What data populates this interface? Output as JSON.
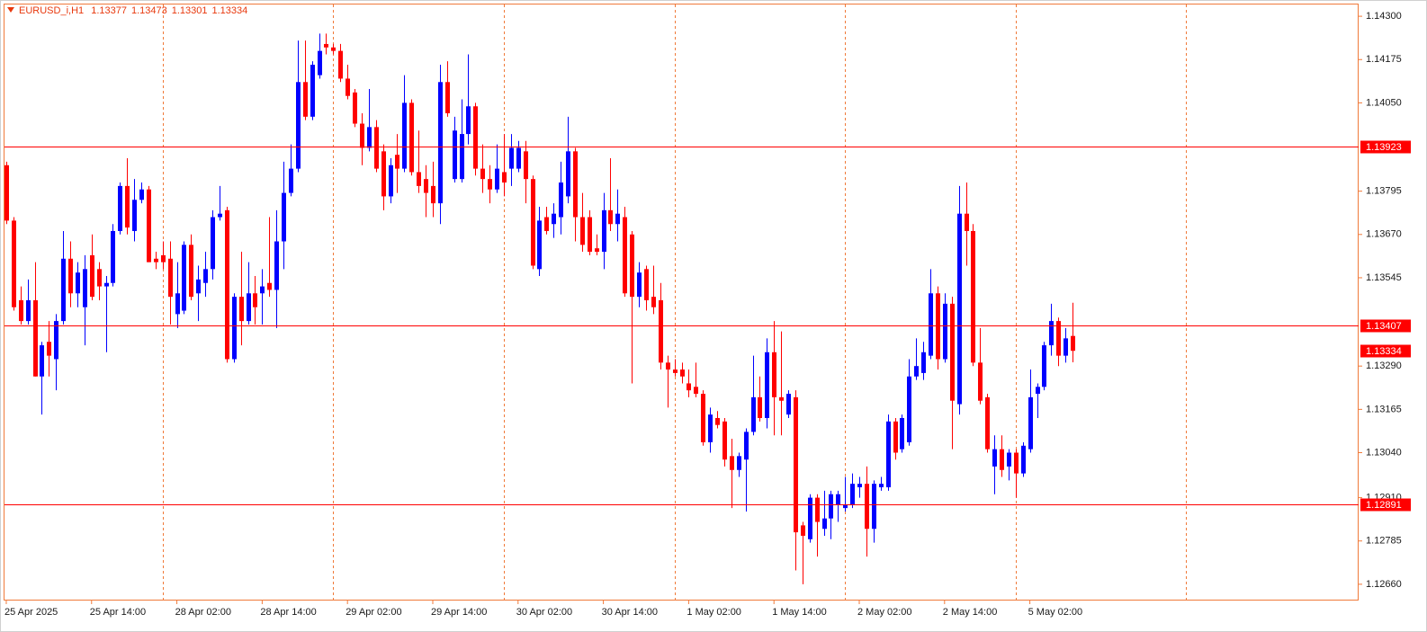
{
  "chart_data": {
    "type": "candlestick",
    "title": "EURUSD_i,H1",
    "open": [
      1.1387,
      1.1371,
      1.1348,
      1.1342,
      1.1348,
      1.1326,
      1.1336,
      1.1331,
      1.1342,
      1.136,
      1.135,
      1.1346,
      1.1361,
      1.1357,
      1.1352,
      1.1353,
      1.1368,
      1.1381,
      1.1368,
      1.1377,
      1.138,
      1.136,
      1.1361,
      1.136,
      1.1344,
      1.1345,
      1.1364,
      1.135,
      1.1353,
      1.1357,
      1.1372,
      1.1374,
      1.1331,
      1.1349,
      1.1342,
      1.135,
      1.135,
      1.1353,
      1.1351,
      1.1365,
      1.1379,
      1.1386,
      1.1411,
      1.1401,
      1.1413,
      1.1422,
      1.1421,
      1.142,
      1.1412,
      1.1408,
      1.1399,
      1.1392,
      1.1398,
      1.1391,
      1.1378,
      1.139,
      1.1386,
      1.1405,
      1.1385,
      1.1383,
      1.1381,
      1.1376,
      1.1411,
      1.1383,
      1.1383,
      1.1396,
      1.1404,
      1.1386,
      1.1383,
      1.138,
      1.1385,
      1.1386,
      1.1386,
      1.1391,
      1.1383,
      1.1357,
      1.1372,
      1.137,
      1.1372,
      1.1378,
      1.1391,
      1.1372,
      1.1372,
      1.1363,
      1.1362,
      1.1374,
      1.137,
      1.1372,
      1.1367,
      1.1349,
      1.1357,
      1.1349,
      1.1348,
      1.133,
      1.1328,
      1.1328,
      1.1324,
      1.1323,
      1.1321,
      1.1307,
      1.1314,
      1.1313,
      1.1303,
      1.1299,
      1.1302,
      1.131,
      1.132,
      1.1314,
      1.1333,
      1.132,
      1.1315,
      1.132,
      1.1283,
      1.1279,
      1.1291,
      1.1282,
      1.1285,
      1.1289,
      1.1288,
      1.1289,
      1.1294,
      1.1295,
      1.1282,
      1.1294,
      1.1294,
      1.1313,
      1.1305,
      1.1307,
      1.1326,
      1.1327,
      1.1332,
      1.135,
      1.1331,
      1.1347,
      1.1318,
      1.1373,
      1.1368,
      1.133,
      1.132,
      1.13,
      1.1305,
      1.13,
      1.1304,
      1.1298,
      1.1305,
      1.1321,
      1.1323,
      1.1335,
      1.1342,
      1.1332,
      1.13377
    ],
    "high": [
      1.1388,
      1.1372,
      1.1352,
      1.1354,
      1.1359,
      1.1336,
      1.1342,
      1.1344,
      1.1368,
      1.1365,
      1.1359,
      1.1361,
      1.1367,
      1.1359,
      1.1355,
      1.137,
      1.1382,
      1.1389,
      1.1383,
      1.1382,
      1.1381,
      1.1362,
      1.1365,
      1.1365,
      1.1359,
      1.1365,
      1.1367,
      1.1358,
      1.1362,
      1.1374,
      1.1381,
      1.1375,
      1.135,
      1.1362,
      1.1359,
      1.1355,
      1.1357,
      1.1372,
      1.1374,
      1.1388,
      1.1393,
      1.1423,
      1.1423,
      1.1417,
      1.1425,
      1.1425,
      1.1422,
      1.1422,
      1.1416,
      1.1409,
      1.1402,
      1.1409,
      1.14,
      1.1393,
      1.1389,
      1.1396,
      1.1413,
      1.1406,
      1.1397,
      1.1387,
      1.1388,
      1.1416,
      1.1417,
      1.1401,
      1.1406,
      1.1419,
      1.1405,
      1.1393,
      1.1387,
      1.1393,
      1.1396,
      1.1396,
      1.1394,
      1.1394,
      1.1384,
      1.1375,
      1.1375,
      1.1376,
      1.1388,
      1.1401,
      1.1392,
      1.1379,
      1.1374,
      1.1367,
      1.1379,
      1.1389,
      1.138,
      1.1375,
      1.1368,
      1.1359,
      1.1358,
      1.1358,
      1.1353,
      1.1332,
      1.1331,
      1.133,
      1.1328,
      1.133,
      1.1322,
      1.1317,
      1.1316,
      1.1314,
      1.1308,
      1.1304,
      1.1311,
      1.1332,
      1.1326,
      1.1337,
      1.1342,
      1.1339,
      1.1322,
      1.1322,
      1.1284,
      1.1292,
      1.1292,
      1.1293,
      1.1293,
      1.1293,
      1.1297,
      1.1298,
      1.1297,
      1.13,
      1.1296,
      1.1297,
      1.1315,
      1.1314,
      1.1315,
      1.1331,
      1.1337,
      1.1336,
      1.1357,
      1.1352,
      1.135,
      1.1349,
      1.1381,
      1.1382,
      1.137,
      1.134,
      1.1321,
      1.1309,
      1.1309,
      1.1305,
      1.1305,
      1.1307,
      1.1328,
      1.1324,
      1.1336,
      1.1347,
      1.1343,
      1.134,
      1.13473
    ],
    "low": [
      1.137,
      1.1345,
      1.1341,
      1.1341,
      1.1326,
      1.1315,
      1.1326,
      1.1322,
      1.1341,
      1.1346,
      1.1346,
      1.1335,
      1.1348,
      1.1348,
      1.1333,
      1.1352,
      1.1367,
      1.1367,
      1.1365,
      1.1376,
      1.1359,
      1.1357,
      1.1357,
      1.1341,
      1.134,
      1.1344,
      1.1348,
      1.1342,
      1.1349,
      1.1354,
      1.1371,
      1.133,
      1.133,
      1.1335,
      1.1341,
      1.1341,
      1.1341,
      1.1349,
      1.134,
      1.1357,
      1.1378,
      1.1385,
      1.14,
      1.14,
      1.1412,
      1.1419,
      1.1419,
      1.1411,
      1.1406,
      1.1398,
      1.1387,
      1.1391,
      1.1385,
      1.1374,
      1.1376,
      1.1379,
      1.1385,
      1.1384,
      1.1379,
      1.1372,
      1.1372,
      1.137,
      1.1401,
      1.1382,
      1.1382,
      1.1393,
      1.1384,
      1.1379,
      1.1376,
      1.1379,
      1.1378,
      1.1381,
      1.1385,
      1.1376,
      1.1357,
      1.1355,
      1.1367,
      1.1366,
      1.1367,
      1.1376,
      1.1365,
      1.1362,
      1.1361,
      1.1361,
      1.1357,
      1.1368,
      1.1365,
      1.1349,
      1.1324,
      1.1346,
      1.1345,
      1.1344,
      1.1328,
      1.1317,
      1.1326,
      1.1324,
      1.132,
      1.132,
      1.1306,
      1.1304,
      1.1311,
      1.13,
      1.1288,
      1.1297,
      1.1287,
      1.1309,
      1.1313,
      1.1311,
      1.1309,
      1.1309,
      1.1314,
      1.127,
      1.1266,
      1.1278,
      1.1274,
      1.128,
      1.1279,
      1.1284,
      1.1287,
      1.1288,
      1.1291,
      1.1274,
      1.1278,
      1.1293,
      1.1293,
      1.1302,
      1.1304,
      1.1306,
      1.1325,
      1.1325,
      1.1331,
      1.1328,
      1.133,
      1.1305,
      1.1315,
      1.1358,
      1.1329,
      1.1318,
      1.1304,
      1.1292,
      1.1297,
      1.1296,
      1.1291,
      1.1297,
      1.1304,
      1.1314,
      1.1322,
      1.1332,
      1.1329,
      1.133,
      1.13301
    ],
    "close": [
      1.1371,
      1.1346,
      1.1342,
      1.1348,
      1.1326,
      1.1335,
      1.1332,
      1.1342,
      1.136,
      1.135,
      1.1356,
      1.1357,
      1.1349,
      1.1352,
      1.1353,
      1.1368,
      1.1381,
      1.1369,
      1.1377,
      1.138,
      1.1359,
      1.1359,
      1.1359,
      1.1349,
      1.135,
      1.1364,
      1.1349,
      1.1354,
      1.1357,
      1.1372,
      1.1373,
      1.1331,
      1.1349,
      1.1342,
      1.135,
      1.1346,
      1.1352,
      1.1351,
      1.1365,
      1.1379,
      1.1386,
      1.1411,
      1.1401,
      1.1416,
      1.142,
      1.1421,
      1.142,
      1.1412,
      1.1407,
      1.1399,
      1.1392,
      1.1398,
      1.1386,
      1.1378,
      1.1387,
      1.1386,
      1.1405,
      1.1385,
      1.1381,
      1.1379,
      1.1376,
      1.1411,
      1.1402,
      1.1397,
      1.1396,
      1.1404,
      1.1386,
      1.1383,
      1.138,
      1.1386,
      1.1382,
      1.1392,
      1.1392,
      1.1383,
      1.1358,
      1.1371,
      1.1368,
      1.1373,
      1.1382,
      1.1391,
      1.1372,
      1.1364,
      1.1362,
      1.1362,
      1.1374,
      1.137,
      1.1373,
      1.135,
      1.1349,
      1.1356,
      1.1348,
      1.1346,
      1.133,
      1.1328,
      1.1327,
      1.1326,
      1.1322,
      1.1321,
      1.1307,
      1.1315,
      1.1312,
      1.1302,
      1.1299,
      1.1303,
      1.131,
      1.132,
      1.1314,
      1.1333,
      1.132,
      1.1319,
      1.1321,
      1.1281,
      1.128,
      1.1291,
      1.1284,
      1.1285,
      1.1292,
      1.1292,
      1.1289,
      1.1295,
      1.1295,
      1.1282,
      1.1295,
      1.1295,
      1.1313,
      1.1304,
      1.1314,
      1.1326,
      1.1329,
      1.1333,
      1.135,
      1.1331,
      1.1347,
      1.1319,
      1.1373,
      1.1368,
      1.133,
      1.1319,
      1.1305,
      1.1305,
      1.1299,
      1.1304,
      1.1298,
      1.1306,
      1.132,
      1.1323,
      1.1335,
      1.1342,
      1.1332,
      1.1337,
      1.13334
    ],
    "up_color": "#0000ff",
    "down_color": "#ff0000",
    "xlim": [
      -0.25,
      190.25
    ],
    "xticks": [
      {
        "value": 0,
        "label": "25 Apr 2025"
      },
      {
        "value": 12,
        "label": "25 Apr 14:00"
      },
      {
        "value": 24,
        "label": "28 Apr 02:00"
      },
      {
        "value": 36,
        "label": "28 Apr 14:00"
      },
      {
        "value": 48,
        "label": "29 Apr 02:00"
      },
      {
        "value": 60,
        "label": "29 Apr 14:00"
      },
      {
        "value": 72,
        "label": "30 Apr 02:00"
      },
      {
        "value": 84,
        "label": "30 Apr 14:00"
      },
      {
        "value": 96,
        "label": "1 May 02:00"
      },
      {
        "value": 108,
        "label": "1 May 14:00"
      },
      {
        "value": 120,
        "label": "2 May 02:00"
      },
      {
        "value": 132,
        "label": "2 May 14:00"
      },
      {
        "value": 144,
        "label": "5 May 02:00"
      }
    ],
    "separators": [
      22,
      46,
      70,
      94,
      118,
      142,
      166
    ],
    "ylim": [
      1.12613,
      1.14334
    ],
    "yticks": [
      {
        "value": 1.143,
        "label": "1.14300"
      },
      {
        "value": 1.14175,
        "label": "1.14175"
      },
      {
        "value": 1.1405,
        "label": "1.14050"
      },
      {
        "value": 1.13795,
        "label": "1.13795"
      },
      {
        "value": 1.1367,
        "label": "1.13670"
      },
      {
        "value": 1.13545,
        "label": "1.13545"
      },
      {
        "value": 1.1329,
        "label": "1.13290"
      },
      {
        "value": 1.13165,
        "label": "1.13165"
      },
      {
        "value": 1.1304,
        "label": "1.13040"
      },
      {
        "value": 1.1291,
        "label": "1.12910"
      },
      {
        "value": 1.12785,
        "label": "1.12785"
      },
      {
        "value": 1.1266,
        "label": "1.12660"
      }
    ],
    "levels": [
      1.13923,
      1.13407,
      1.12891
    ]
  }
}
